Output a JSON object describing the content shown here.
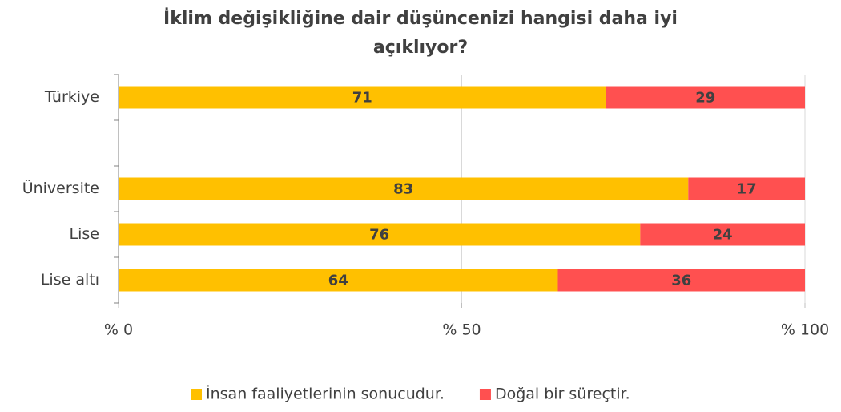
{
  "chart_data": {
    "type": "stacked-barh",
    "title": [
      "İklim değişikliğine dair düşüncenizi hangisi daha iyi",
      "açıklıyor?"
    ],
    "categories": [
      "Türkiye",
      null,
      "Üniversite",
      "Lise",
      "Lise altı"
    ],
    "series": [
      {
        "name": "İnsan faaliyetlerinin sonucudur.",
        "color": "#ffc000",
        "values": [
          71,
          null,
          83,
          76,
          64
        ]
      },
      {
        "name": "Doğal bir süreçtir.",
        "color": "#ff5050",
        "values": [
          29,
          null,
          17,
          24,
          36
        ]
      }
    ],
    "xlim": [
      0,
      100
    ],
    "xticks": [
      {
        "value": 0,
        "label": "% 0"
      },
      {
        "value": 50,
        "label": "% 50"
      },
      {
        "value": 100,
        "label": "% 100"
      }
    ],
    "grid": true,
    "legend": "bottom"
  }
}
